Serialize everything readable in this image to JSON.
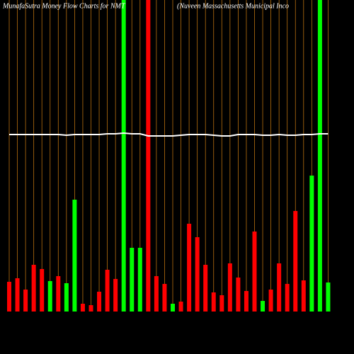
{
  "chart_data": {
    "type": "bar",
    "title": "MunafaSutra  Money Flow  Charts for NMT",
    "subtitle": "(Nuveen  Massachusetts  Municipal Inco",
    "categories": [
      null,
      null,
      null,
      null,
      null,
      null,
      null,
      null,
      null,
      null,
      null,
      null,
      null,
      null,
      null,
      null,
      null,
      null,
      null,
      null,
      null,
      null,
      null,
      null,
      null,
      null,
      null,
      null,
      null,
      null,
      null,
      null,
      null,
      null,
      null,
      null,
      null,
      null,
      null,
      null
    ],
    "values": [
      42,
      47,
      31,
      66,
      60,
      43,
      50,
      40,
      158,
      11,
      9,
      28,
      59,
      46,
      440,
      90,
      90,
      440,
      50,
      39,
      11,
      14,
      124,
      105,
      66,
      27,
      23,
      68,
      48,
      29,
      113,
      15,
      31,
      68,
      39,
      142,
      44,
      192,
      440,
      41
    ],
    "colors": [
      "#ff0000",
      "#ff0000",
      "#ff0000",
      "#ff0000",
      "#ff0000",
      "#00ff00",
      "#ff0000",
      "#00ff00",
      "#00ff00",
      "#ff0000",
      "#ff0000",
      "#ff0000",
      "#ff0000",
      "#ff0000",
      "#00ff00",
      "#00ff00",
      "#00ff00",
      "#ff0000",
      "#ff0000",
      "#ff0000",
      "#00ff00",
      "#ff0000",
      "#ff0000",
      "#ff0000",
      "#ff0000",
      "#ff0000",
      "#ff0000",
      "#ff0000",
      "#ff0000",
      "#ff0000",
      "#ff0000",
      "#00ff00",
      "#ff0000",
      "#ff0000",
      "#ff0000",
      "#ff0000",
      "#ff0000",
      "#00ff00",
      "#00ff00",
      "#00ff00"
    ],
    "line": {
      "color": "#ffffff",
      "values": [
        250,
        250,
        250,
        250,
        250,
        250,
        250,
        249,
        250,
        250,
        250,
        250,
        251,
        251,
        252,
        251,
        251,
        248,
        248,
        248,
        248,
        249,
        250,
        250,
        250,
        249,
        248,
        248,
        250,
        250,
        250,
        249,
        249,
        250,
        249,
        249,
        250,
        250,
        251,
        251
      ]
    },
    "grid_color": "#b8700f",
    "ylim": [
      0,
      440
    ]
  }
}
